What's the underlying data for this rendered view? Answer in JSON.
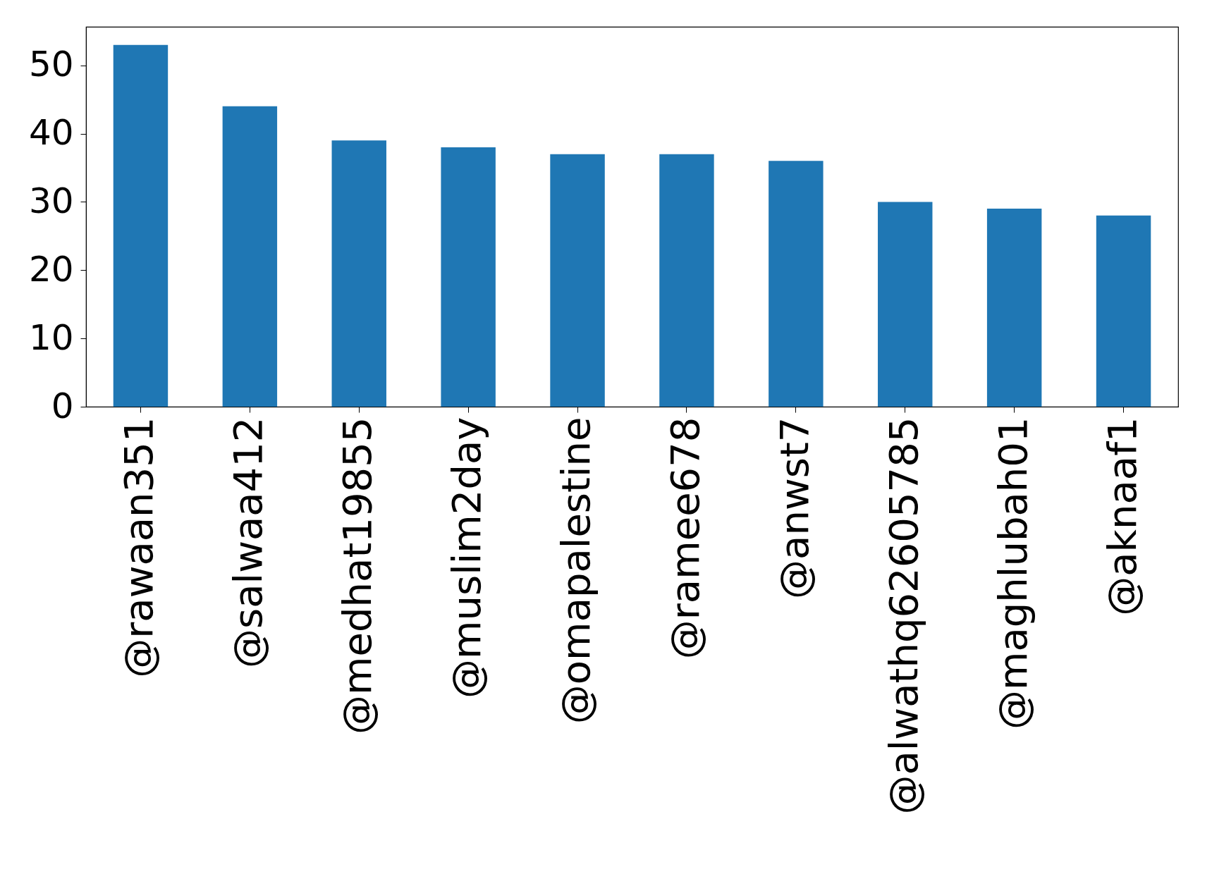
{
  "chart_data": {
    "type": "bar",
    "categories": [
      "@rawaan351",
      "@salwaa412",
      "@medhat19855",
      "@muslim2day",
      "@omapalestine",
      "@ramee678",
      "@anwst7",
      "@alwathq62605785",
      "@maghlubah01",
      "@aknaaf1"
    ],
    "values": [
      53,
      44,
      39,
      38,
      37,
      37,
      36,
      30,
      29,
      28
    ],
    "color": "#1f77b4",
    "ylim": [
      0,
      55.65
    ],
    "yticks": [
      0,
      10,
      20,
      30,
      40,
      50
    ],
    "grid": false
  }
}
